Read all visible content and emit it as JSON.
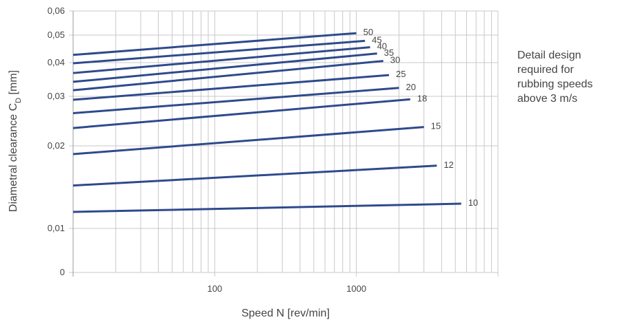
{
  "chart_data": {
    "type": "line",
    "xlabel": "Speed N [rev/min]",
    "ylabel": "Diametral clearance C",
    "ylabel_subscript": "D",
    "ylabel_unit": " [mm]",
    "x_scale": "log",
    "xlim": [
      10,
      10000
    ],
    "y_scale": "custom (rounded log-like)",
    "ylim": [
      0,
      0.06
    ],
    "x_ticks": [
      {
        "value": 100,
        "label": "100"
      },
      {
        "value": 1000,
        "label": "1000"
      }
    ],
    "y_ticks": [
      {
        "value": 0,
        "label": "0"
      },
      {
        "value": 0.01,
        "label": "0,01"
      },
      {
        "value": 0.02,
        "label": "0,02"
      },
      {
        "value": 0.03,
        "label": "0,03"
      },
      {
        "value": 0.04,
        "label": "0,04"
      },
      {
        "value": 0.05,
        "label": "0,05"
      },
      {
        "value": 0.06,
        "label": "0,06"
      }
    ],
    "grid": true,
    "line_color": "#2e4a8c",
    "series": [
      {
        "name": "50",
        "x": [
          10,
          1000
        ],
        "y": [
          0.0428,
          0.0508
        ]
      },
      {
        "name": "45",
        "x": [
          10,
          1150
        ],
        "y": [
          0.0398,
          0.0479
        ]
      },
      {
        "name": "40",
        "x": [
          10,
          1250
        ],
        "y": [
          0.0369,
          0.0456
        ]
      },
      {
        "name": "35",
        "x": [
          10,
          1400
        ],
        "y": [
          0.0343,
          0.0433
        ]
      },
      {
        "name": "30",
        "x": [
          10,
          1550
        ],
        "y": [
          0.0318,
          0.0406
        ]
      },
      {
        "name": "25",
        "x": [
          10,
          1700
        ],
        "y": [
          0.0293,
          0.0363
        ]
      },
      {
        "name": "20",
        "x": [
          10,
          2000
        ],
        "y": [
          0.0266,
          0.0325
        ]
      },
      {
        "name": "18",
        "x": [
          10,
          2400
        ],
        "y": [
          0.0236,
          0.0294
        ]
      },
      {
        "name": "15",
        "x": [
          10,
          3000
        ],
        "y": [
          0.019,
          0.0238
        ]
      },
      {
        "name": "12",
        "x": [
          10,
          3700
        ],
        "y": [
          0.0152,
          0.0176
        ]
      },
      {
        "name": "10",
        "x": [
          10,
          5500
        ],
        "y": [
          0.012,
          0.013
        ]
      }
    ]
  },
  "note": {
    "lines": [
      "Detail design",
      "required for",
      "rubbing speeds",
      "above 3 m/s"
    ]
  }
}
